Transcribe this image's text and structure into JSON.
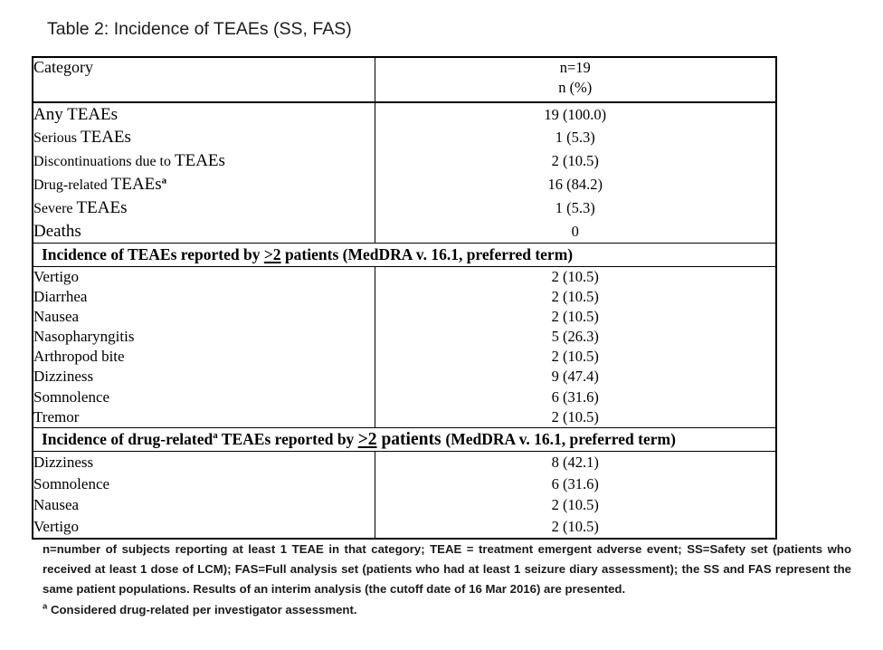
{
  "title": "Table 2: Incidence of TEAEs (SS, FAS)",
  "table": {
    "header": {
      "category": "Category",
      "n_line1": "n=19",
      "n_line2": "n (%)"
    },
    "sections": [
      {
        "kind": "rows",
        "rows": [
          {
            "parts": [
              {
                "t": "Any TEAEs",
                "c": "lg"
              }
            ],
            "value": "19 (100.0)"
          },
          {
            "parts": [
              {
                "t": "Serious ",
                "c": "sm"
              },
              {
                "t": "TEAEs",
                "c": "lg"
              }
            ],
            "value": "1 (5.3)"
          },
          {
            "parts": [
              {
                "t": "Discontinuations due to ",
                "c": "sm"
              },
              {
                "t": "TEAEs",
                "c": "lg"
              }
            ],
            "value": "2 (10.5)"
          },
          {
            "parts": [
              {
                "t": "Drug-related ",
                "c": "sm"
              },
              {
                "t": "TEAEs",
                "c": "lg"
              },
              {
                "t": "a",
                "c": "sup"
              }
            ],
            "value": "16 (84.2)"
          },
          {
            "parts": [
              {
                "t": "Severe ",
                "c": "sm"
              },
              {
                "t": "TEAEs",
                "c": "lg"
              }
            ],
            "value": "1 (5.3)"
          },
          {
            "parts": [
              {
                "t": "Deaths",
                "c": "lg"
              }
            ],
            "value": "0"
          }
        ]
      },
      {
        "kind": "header",
        "parts": [
          {
            "t": "Incidence of TEAEs reported by ",
            "c": ""
          },
          {
            "t": ">2",
            "c": "u"
          },
          {
            "t": " patients (MedDRA v. 16.1, preferred term)",
            "c": ""
          }
        ]
      },
      {
        "kind": "rows",
        "rows": [
          {
            "parts": [
              {
                "t": "Vertigo",
                "c": ""
              }
            ],
            "value": "2 (10.5)"
          },
          {
            "parts": [
              {
                "t": "Diarrhea",
                "c": ""
              }
            ],
            "value": "2 (10.5)"
          },
          {
            "parts": [
              {
                "t": "Nausea",
                "c": ""
              }
            ],
            "value": "2 (10.5)"
          },
          {
            "parts": [
              {
                "t": "Nasopharyngitis",
                "c": ""
              }
            ],
            "value": "5 (26.3)"
          },
          {
            "parts": [
              {
                "t": "Arthropod bite",
                "c": ""
              }
            ],
            "value": "2 (10.5)"
          },
          {
            "parts": [
              {
                "t": "Dizziness",
                "c": ""
              }
            ],
            "value": "9 (47.4)"
          },
          {
            "parts": [
              {
                "t": "Somnolence",
                "c": ""
              }
            ],
            "value": "6 (31.6)"
          },
          {
            "parts": [
              {
                "t": "Tremor",
                "c": ""
              }
            ],
            "value": "2 (10.5)"
          }
        ]
      },
      {
        "kind": "header",
        "parts": [
          {
            "t": "Incidence of drug-related",
            "c": ""
          },
          {
            "t": "a",
            "c": "sup"
          },
          {
            "t": " TEAEs reported by ",
            "c": ""
          },
          {
            "t": ">2",
            "c": "u lg"
          },
          {
            "t": " patients ",
            "c": "lg"
          },
          {
            "t": " (MedDRA v. 16.1, preferred term)",
            "c": ""
          }
        ]
      },
      {
        "kind": "rows",
        "rows": [
          {
            "parts": [
              {
                "t": "Dizziness",
                "c": ""
              }
            ],
            "value": "8 (42.1)"
          },
          {
            "parts": [
              {
                "t": "Somnolence",
                "c": ""
              }
            ],
            "value": "6 (31.6)"
          },
          {
            "parts": [
              {
                "t": "Nausea",
                "c": ""
              }
            ],
            "value": "2 (10.5)"
          },
          {
            "parts": [
              {
                "t": "Vertigo",
                "c": ""
              }
            ],
            "value": "2 (10.5)"
          }
        ]
      }
    ]
  },
  "footnotes": {
    "line1": "n=number of subjects reporting at least 1 TEAE in that category; TEAE = treatment emergent adverse event; SS=Safety set (patients who",
    "line2": "received at least 1 dose of LCM); FAS=Full analysis set (patients who had at least 1 seizure diary assessment); the SS and FAS represent the",
    "line3": "same patient populations. Results of an interim analysis (the cutoff date of 16 Mar 2016) are presented.",
    "note_a_sup": "a",
    "note_a_text": " Considered drug-related per investigator assessment."
  }
}
